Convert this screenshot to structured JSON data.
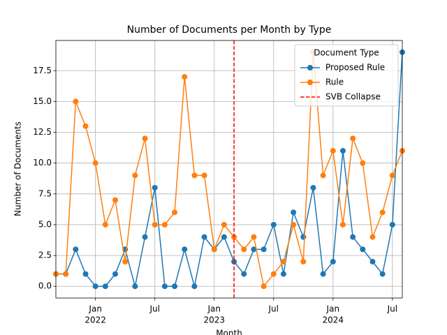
{
  "chart_data": {
    "type": "line",
    "title": "Number of Documents per Month by Type",
    "xlabel": "Month",
    "ylabel": "Number of Documents",
    "x": [
      "2021-09",
      "2021-10",
      "2021-11",
      "2021-12",
      "2022-01",
      "2022-02",
      "2022-03",
      "2022-04",
      "2022-05",
      "2022-06",
      "2022-07",
      "2022-08",
      "2022-09",
      "2022-10",
      "2022-11",
      "2022-12",
      "2023-01",
      "2023-02",
      "2023-03",
      "2023-04",
      "2023-05",
      "2023-06",
      "2023-07",
      "2023-08",
      "2023-09",
      "2023-10",
      "2023-11",
      "2023-12",
      "2024-01",
      "2024-02",
      "2024-03",
      "2024-04",
      "2024-05",
      "2024-06",
      "2024-07",
      "2024-08"
    ],
    "series": [
      {
        "name": "Proposed Rule",
        "color": "#1f77b4",
        "values": [
          1,
          1,
          3,
          1,
          0,
          0,
          1,
          3,
          0,
          4,
          8,
          0,
          0,
          3,
          0,
          4,
          3,
          4,
          2,
          1,
          3,
          3,
          5,
          1,
          6,
          4,
          8,
          1,
          2,
          11,
          4,
          3,
          2,
          1,
          5,
          19
        ]
      },
      {
        "name": "Rule",
        "color": "#ff7f0e",
        "values": [
          1,
          1,
          15,
          13,
          10,
          5,
          7,
          2,
          9,
          12,
          5,
          5,
          6,
          17,
          9,
          9,
          3,
          5,
          4,
          3,
          4,
          0,
          1,
          2,
          5,
          2,
          19,
          9,
          11,
          5,
          12,
          10,
          4,
          6,
          9,
          11
        ]
      }
    ],
    "vline": {
      "x": "2023-03",
      "name": "SVB Collapse",
      "color": "#ff0000"
    },
    "legend_title": "Document Type",
    "legend": "upper right",
    "grid": true,
    "xlim": [
      "2021-09",
      "2024-08"
    ],
    "xticks": [
      {
        "value": "2022-01",
        "label": "Jan"
      },
      {
        "value": "2022-07",
        "label": "Jul"
      },
      {
        "value": "2023-01",
        "label": "Jan"
      },
      {
        "value": "2023-07",
        "label": "Jul"
      },
      {
        "value": "2024-01",
        "label": "Jan"
      },
      {
        "value": "2024-07",
        "label": "Jul"
      }
    ],
    "xtick_years": [
      {
        "value": "2022-01",
        "label": "2022"
      },
      {
        "value": "2023-01",
        "label": "2023"
      },
      {
        "value": "2024-01",
        "label": "2024"
      }
    ],
    "ylim": [
      -0.95,
      19.95
    ],
    "yticks": [
      {
        "value": 0,
        "label": "0.0"
      },
      {
        "value": 2.5,
        "label": "2.5"
      },
      {
        "value": 5,
        "label": "5.0"
      },
      {
        "value": 7.5,
        "label": "7.5"
      },
      {
        "value": 10,
        "label": "10.0"
      },
      {
        "value": 12.5,
        "label": "12.5"
      },
      {
        "value": 15,
        "label": "15.0"
      },
      {
        "value": 17.5,
        "label": "17.5"
      }
    ]
  }
}
